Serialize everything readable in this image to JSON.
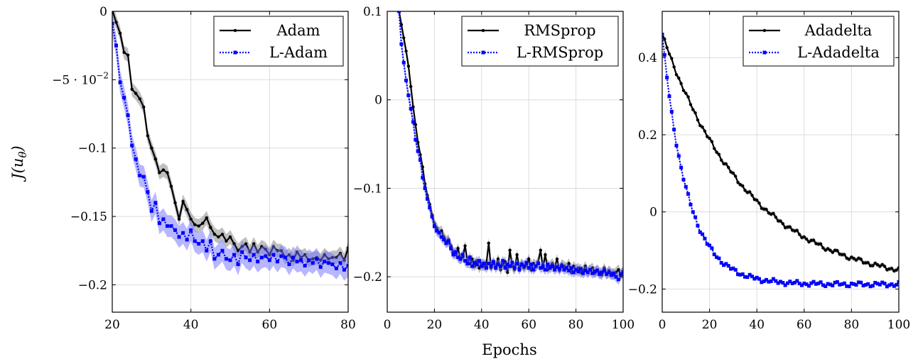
{
  "figure": {
    "ylabel_main": "J(u",
    "ylabel_sub": "θ",
    "ylabel_close": ")",
    "xlabel": "Epochs"
  },
  "chart_data": [
    {
      "type": "line",
      "xlim": [
        20,
        80
      ],
      "ylim": [
        -0.22,
        0
      ],
      "xticks": [
        20,
        40,
        60,
        80
      ],
      "yticks": [
        0,
        -0.05,
        -0.1,
        -0.15,
        -0.2
      ],
      "ytick_labels": [
        "0",
        "−5 · 10",
        "−0.1",
        "−0.15",
        "−0.2"
      ],
      "ytick_exp": [
        "",
        "−2",
        "",
        "",
        ""
      ],
      "grid": true,
      "legend_position": "top-right",
      "series": [
        {
          "name": "Adam",
          "color": "#000000",
          "band_color": "#808080",
          "x": [
            20,
            21,
            22,
            23,
            24,
            25,
            26,
            27,
            28,
            29,
            30,
            31,
            32,
            33,
            34,
            35,
            36,
            37,
            38,
            39,
            40,
            41,
            42,
            43,
            44,
            45,
            46,
            47,
            48,
            49,
            50,
            51,
            52,
            53,
            54,
            55,
            56,
            57,
            58,
            59,
            60,
            61,
            62,
            63,
            64,
            65,
            66,
            67,
            68,
            69,
            70,
            71,
            72,
            73,
            74,
            75,
            76,
            77,
            78,
            79,
            80
          ],
          "y": [
            0.001,
            -0.008,
            -0.016,
            -0.03,
            -0.032,
            -0.057,
            -0.06,
            -0.064,
            -0.07,
            -0.091,
            -0.1,
            -0.108,
            -0.118,
            -0.116,
            -0.118,
            -0.128,
            -0.14,
            -0.152,
            -0.139,
            -0.145,
            -0.152,
            -0.156,
            -0.157,
            -0.155,
            -0.151,
            -0.158,
            -0.163,
            -0.165,
            -0.163,
            -0.168,
            -0.165,
            -0.17,
            -0.175,
            -0.172,
            -0.17,
            -0.176,
            -0.17,
            -0.176,
            -0.172,
            -0.174,
            -0.178,
            -0.172,
            -0.175,
            -0.175,
            -0.18,
            -0.178,
            -0.182,
            -0.176,
            -0.18,
            -0.178,
            -0.182,
            -0.181,
            -0.18,
            -0.182,
            -0.178,
            -0.181,
            -0.18,
            -0.18,
            -0.177,
            -0.182,
            -0.173
          ],
          "band": 0.005
        },
        {
          "name": "L-Adam",
          "color": "#0000ff",
          "band_color": "#7070ff",
          "x": [
            20,
            21,
            22,
            23,
            24,
            25,
            26,
            27,
            28,
            29,
            30,
            31,
            32,
            33,
            34,
            35,
            36,
            37,
            38,
            39,
            40,
            41,
            42,
            43,
            44,
            45,
            46,
            47,
            48,
            49,
            50,
            51,
            52,
            53,
            54,
            55,
            56,
            57,
            58,
            59,
            60,
            61,
            62,
            63,
            64,
            65,
            66,
            67,
            68,
            69,
            70,
            71,
            72,
            73,
            74,
            75,
            76,
            77,
            78,
            79,
            80
          ],
          "y": [
            -0.009,
            -0.025,
            -0.052,
            -0.063,
            -0.076,
            -0.098,
            -0.108,
            -0.12,
            -0.121,
            -0.132,
            -0.146,
            -0.14,
            -0.155,
            -0.152,
            -0.157,
            -0.157,
            -0.16,
            -0.165,
            -0.162,
            -0.167,
            -0.16,
            -0.168,
            -0.17,
            -0.168,
            -0.175,
            -0.168,
            -0.181,
            -0.178,
            -0.175,
            -0.181,
            -0.182,
            -0.178,
            -0.185,
            -0.176,
            -0.18,
            -0.182,
            -0.178,
            -0.183,
            -0.18,
            -0.179,
            -0.182,
            -0.178,
            -0.183,
            -0.179,
            -0.18,
            -0.185,
            -0.18,
            -0.183,
            -0.182,
            -0.186,
            -0.182,
            -0.184,
            -0.181,
            -0.187,
            -0.183,
            -0.184,
            -0.185,
            -0.188,
            -0.184,
            -0.189,
            -0.186
          ],
          "band": 0.008
        }
      ]
    },
    {
      "type": "line",
      "xlim": [
        0,
        100
      ],
      "ylim": [
        -0.24,
        0.1
      ],
      "xticks": [
        0,
        20,
        40,
        60,
        80,
        100
      ],
      "yticks": [
        0.1,
        0,
        -0.1,
        -0.2
      ],
      "ytick_labels": [
        "0.1",
        "0",
        "−0.1",
        "−0.2"
      ],
      "grid": true,
      "legend_position": "top-right",
      "series": [
        {
          "name": "RMSprop",
          "color": "#000000",
          "band_color": "#808080",
          "x": [
            5,
            6,
            7,
            8,
            9,
            10,
            11,
            12,
            13,
            14,
            15,
            16,
            17,
            18,
            19,
            20,
            21,
            22,
            23,
            24,
            25,
            26,
            27,
            28,
            29,
            30,
            31,
            32,
            33,
            34,
            35,
            36,
            37,
            38,
            39,
            40,
            41,
            42,
            43,
            44,
            45,
            46,
            47,
            48,
            49,
            50,
            51,
            52,
            53,
            54,
            55,
            56,
            57,
            58,
            59,
            60,
            61,
            62,
            63,
            64,
            65,
            66,
            67,
            68,
            69,
            70,
            71,
            72,
            73,
            74,
            75,
            76,
            77,
            78,
            79,
            80,
            81,
            82,
            83,
            84,
            85,
            86,
            87,
            88,
            89,
            90,
            91,
            92,
            93,
            94,
            95,
            96,
            97,
            98,
            99,
            100
          ],
          "y": [
            0.1,
            0.085,
            0.07,
            0.055,
            0.038,
            0.015,
            -0.008,
            -0.028,
            -0.048,
            -0.062,
            -0.076,
            -0.095,
            -0.108,
            -0.118,
            -0.13,
            -0.14,
            -0.145,
            -0.15,
            -0.148,
            -0.155,
            -0.16,
            -0.158,
            -0.165,
            -0.172,
            -0.175,
            -0.168,
            -0.18,
            -0.178,
            -0.165,
            -0.183,
            -0.185,
            -0.18,
            -0.188,
            -0.182,
            -0.19,
            -0.185,
            -0.188,
            -0.186,
            -0.162,
            -0.19,
            -0.185,
            -0.188,
            -0.18,
            -0.192,
            -0.186,
            -0.183,
            -0.195,
            -0.17,
            -0.188,
            -0.192,
            -0.175,
            -0.19,
            -0.185,
            -0.19,
            -0.187,
            -0.18,
            -0.192,
            -0.185,
            -0.188,
            -0.183,
            -0.17,
            -0.19,
            -0.175,
            -0.192,
            -0.188,
            -0.185,
            -0.19,
            -0.18,
            -0.193,
            -0.186,
            -0.188,
            -0.19,
            -0.185,
            -0.195,
            -0.188,
            -0.192,
            -0.19,
            -0.195,
            -0.193,
            -0.188,
            -0.195,
            -0.192,
            -0.19,
            -0.196,
            -0.192,
            -0.195,
            -0.198,
            -0.19,
            -0.197,
            -0.193,
            -0.196,
            -0.198,
            -0.195,
            -0.192,
            -0.198,
            -0.194
          ],
          "band": 0.006
        },
        {
          "name": "L-RMSprop",
          "color": "#0000ff",
          "band_color": "#7070ff",
          "x": [
            5,
            6,
            7,
            8,
            9,
            10,
            11,
            12,
            13,
            14,
            15,
            16,
            17,
            18,
            19,
            20,
            21,
            22,
            23,
            24,
            25,
            26,
            27,
            28,
            29,
            30,
            31,
            32,
            33,
            34,
            35,
            36,
            37,
            38,
            39,
            40,
            41,
            42,
            43,
            44,
            45,
            46,
            47,
            48,
            49,
            50,
            51,
            52,
            53,
            54,
            55,
            56,
            57,
            58,
            59,
            60,
            61,
            62,
            63,
            64,
            65,
            66,
            67,
            68,
            69,
            70,
            71,
            72,
            73,
            74,
            75,
            76,
            77,
            78,
            79,
            80,
            81,
            82,
            83,
            84,
            85,
            86,
            87,
            88,
            89,
            90,
            91,
            92,
            93,
            94,
            95,
            96,
            97,
            98,
            99,
            100
          ],
          "y": [
            0.1,
            0.063,
            0.042,
            0.022,
            0.005,
            -0.01,
            -0.025,
            -0.045,
            -0.058,
            -0.068,
            -0.088,
            -0.1,
            -0.112,
            -0.122,
            -0.132,
            -0.143,
            -0.148,
            -0.15,
            -0.155,
            -0.158,
            -0.162,
            -0.16,
            -0.168,
            -0.175,
            -0.172,
            -0.178,
            -0.18,
            -0.175,
            -0.182,
            -0.185,
            -0.178,
            -0.188,
            -0.184,
            -0.186,
            -0.182,
            -0.188,
            -0.185,
            -0.19,
            -0.185,
            -0.188,
            -0.183,
            -0.19,
            -0.186,
            -0.188,
            -0.182,
            -0.19,
            -0.186,
            -0.188,
            -0.184,
            -0.19,
            -0.185,
            -0.192,
            -0.186,
            -0.188,
            -0.184,
            -0.19,
            -0.186,
            -0.192,
            -0.188,
            -0.185,
            -0.19,
            -0.188,
            -0.192,
            -0.186,
            -0.19,
            -0.188,
            -0.192,
            -0.189,
            -0.191,
            -0.188,
            -0.192,
            -0.19,
            -0.193,
            -0.19,
            -0.195,
            -0.192,
            -0.194,
            -0.191,
            -0.196,
            -0.193,
            -0.195,
            -0.192,
            -0.196,
            -0.194,
            -0.193,
            -0.197,
            -0.195,
            -0.193,
            -0.197,
            -0.195,
            -0.198,
            -0.196,
            -0.2,
            -0.203,
            -0.197,
            -0.195
          ],
          "band": 0.006
        }
      ]
    },
    {
      "type": "line",
      "xlim": [
        0,
        100
      ],
      "ylim": [
        -0.26,
        0.52
      ],
      "xticks": [
        0,
        20,
        40,
        60,
        80,
        100
      ],
      "yticks": [
        0.4,
        0.2,
        0,
        -0.2
      ],
      "ytick_labels": [
        "0.4",
        "0.2",
        "0",
        "−0.2"
      ],
      "grid": true,
      "legend_position": "top-right",
      "series": [
        {
          "name": "Adadelta",
          "color": "#000000",
          "band_color": "#808080",
          "decay": {
            "start": 0.46,
            "end": -0.195,
            "rate": 0.027
          },
          "band": 0.006
        },
        {
          "name": "L-Adadelta",
          "color": "#0000ff",
          "band_color": "#7070ff",
          "decay": {
            "start": 0.46,
            "end": -0.188,
            "rate": 0.095
          },
          "band": 0.004
        }
      ]
    }
  ]
}
